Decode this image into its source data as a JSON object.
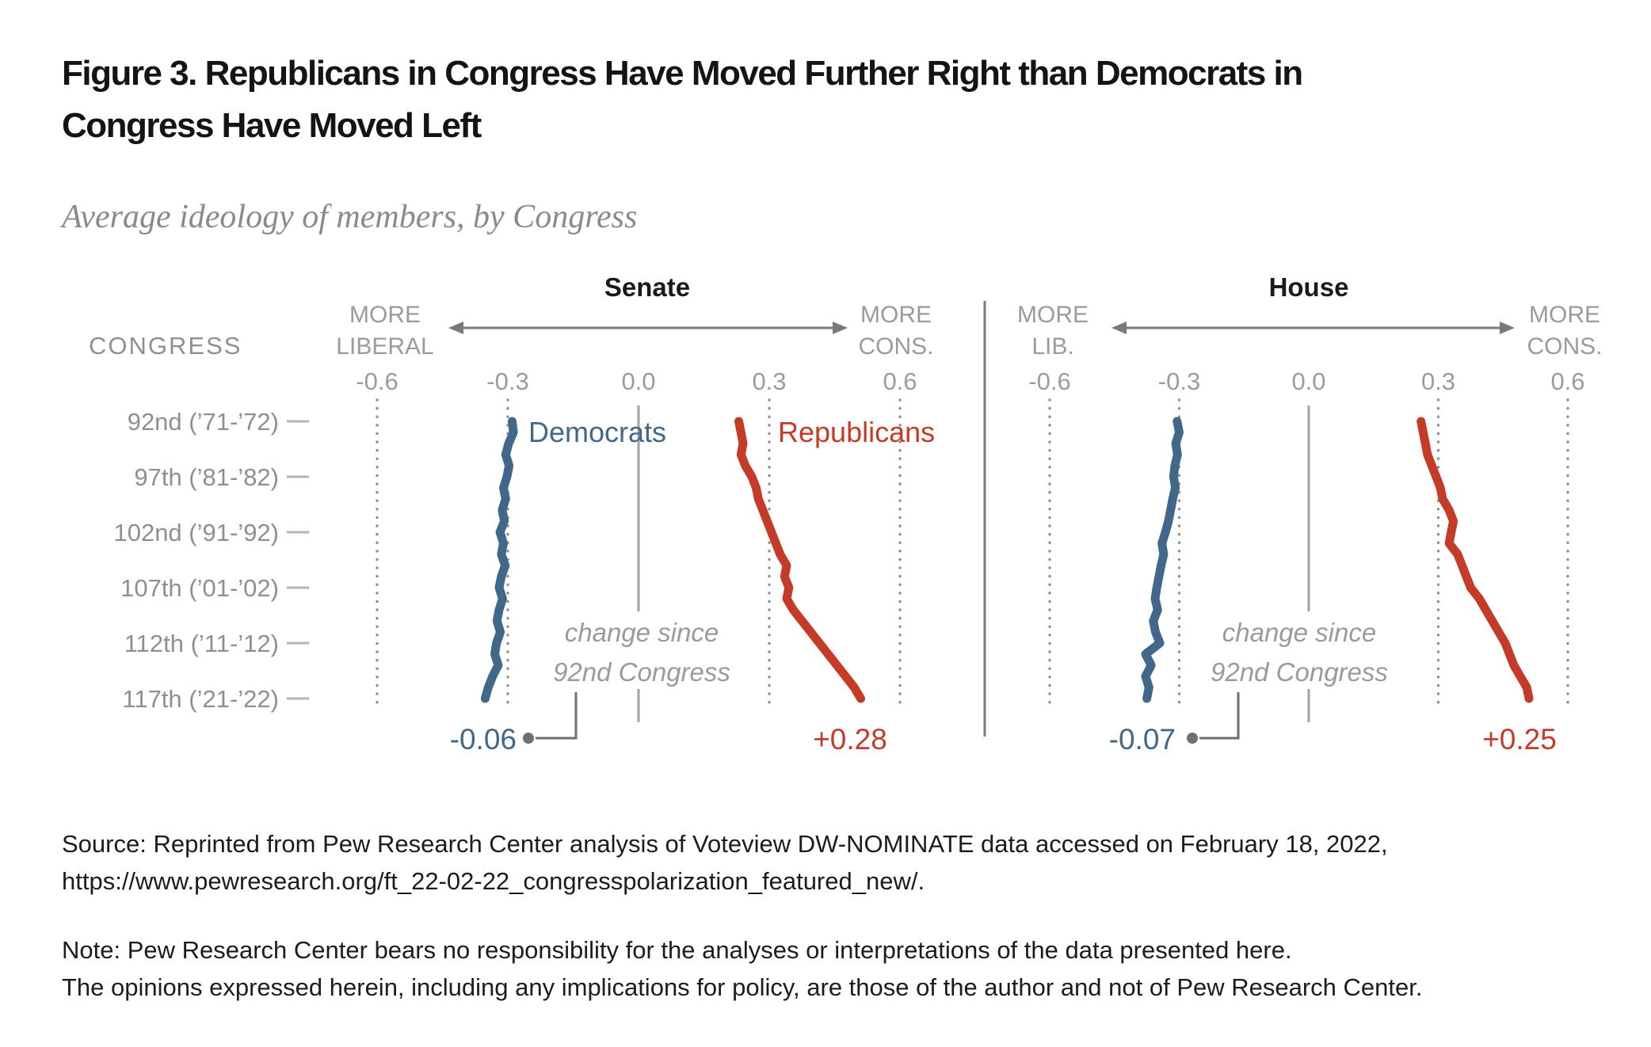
{
  "figure": {
    "title": "Figure 3. Republicans in Congress Have Moved Further Right than Democrats in Congress Have Moved Left",
    "subtitle": "Average ideology of members, by Congress"
  },
  "colors": {
    "democrat_blue": "#41688A",
    "republican_red": "#C43B28",
    "axis_text": "#9b9b9b",
    "congress_text": "#8f8f8f",
    "grid_dots": "#8f8f8f",
    "zero_line": "#a3a3a3",
    "arrow_gray": "#7a7a7a",
    "divider_gray": "#7d7d7d",
    "annotation_gray": "#9a9a9a",
    "connector_gray": "#6f6f6f",
    "title_black": "#141414"
  },
  "chart_data": {
    "type": "line",
    "x_axis": {
      "ticks": [
        -0.6,
        -0.3,
        0.0,
        0.3,
        0.6
      ],
      "tick_labels": [
        "-0.6",
        "-0.3",
        "0.0",
        "0.3",
        "0.6"
      ],
      "range": [
        -0.75,
        0.75
      ],
      "grid": "dotted vertical at ±0.3 and ±0.6, solid at 0.0"
    },
    "congress_axis": {
      "header": "CONGRESS",
      "first_congress": 92,
      "last_congress": 117,
      "rows": [
        {
          "congress": 92,
          "label": "92nd (’71-’72)"
        },
        {
          "congress": 97,
          "label": "97th (’81-’82)"
        },
        {
          "congress": 102,
          "label": "102nd (’91-’92)"
        },
        {
          "congress": 107,
          "label": "107th (’01-’02)"
        },
        {
          "congress": 112,
          "label": "112th (’11-’12)"
        },
        {
          "congress": 117,
          "label": "117th (’21-’22)"
        }
      ]
    },
    "panels": [
      {
        "id": "senate",
        "title": "Senate",
        "left_label": [
          "MORE",
          "LIBERAL"
        ],
        "right_label": [
          "MORE",
          "CONS."
        ],
        "show_legend": true,
        "annotation": [
          "change since",
          "92nd Congress"
        ],
        "series": [
          {
            "name": "Democrats",
            "color": "#41688A",
            "change_label": "-0.06",
            "values": [
              -0.29,
              -0.287,
              -0.298,
              -0.305,
              -0.297,
              -0.302,
              -0.31,
              -0.305,
              -0.313,
              -0.308,
              -0.318,
              -0.31,
              -0.315,
              -0.306,
              -0.315,
              -0.32,
              -0.312,
              -0.32,
              -0.325,
              -0.317,
              -0.326,
              -0.33,
              -0.322,
              -0.335,
              -0.345,
              -0.352
            ]
          },
          {
            "name": "Republicans",
            "color": "#C43B28",
            "change_label": "+0.28",
            "values": [
              0.23,
              0.235,
              0.24,
              0.235,
              0.245,
              0.26,
              0.27,
              0.275,
              0.285,
              0.295,
              0.305,
              0.315,
              0.325,
              0.34,
              0.335,
              0.345,
              0.34,
              0.355,
              0.375,
              0.395,
              0.415,
              0.435,
              0.455,
              0.475,
              0.495,
              0.51
            ]
          }
        ]
      },
      {
        "id": "house",
        "title": "House",
        "left_label": [
          "MORE",
          "LIB."
        ],
        "right_label": [
          "MORE",
          "CONS."
        ],
        "show_legend": false,
        "annotation": [
          "change since",
          "92nd Congress"
        ],
        "series": [
          {
            "name": "Democrats",
            "color": "#41688A",
            "change_label": "-0.07",
            "values": [
              -0.305,
              -0.3,
              -0.308,
              -0.304,
              -0.31,
              -0.313,
              -0.309,
              -0.315,
              -0.32,
              -0.325,
              -0.332,
              -0.34,
              -0.336,
              -0.342,
              -0.347,
              -0.352,
              -0.356,
              -0.35,
              -0.36,
              -0.355,
              -0.345,
              -0.378,
              -0.365,
              -0.378,
              -0.37,
              -0.375
            ]
          },
          {
            "name": "Republicans",
            "color": "#C43B28",
            "change_label": "+0.25",
            "values": [
              0.26,
              0.265,
              0.27,
              0.275,
              0.285,
              0.295,
              0.305,
              0.31,
              0.325,
              0.335,
              0.33,
              0.325,
              0.345,
              0.355,
              0.365,
              0.375,
              0.395,
              0.41,
              0.425,
              0.44,
              0.455,
              0.465,
              0.475,
              0.49,
              0.505,
              0.51
            ]
          }
        ]
      }
    ]
  },
  "source": {
    "line1": "Source: Reprinted from Pew Research Center analysis of Voteview DW-NOMINATE data accessed on February 18, 2022,",
    "line2": "https://www.pewresearch.org/ft_22-02-22_congresspolarization_featured_new/."
  },
  "note": {
    "line1": "Note: Pew Research Center bears no responsibility for the analyses or interpretations of the data presented here.",
    "line2": "The opinions expressed herein, including any implications for policy, are those of the author and not of Pew Research Center."
  }
}
